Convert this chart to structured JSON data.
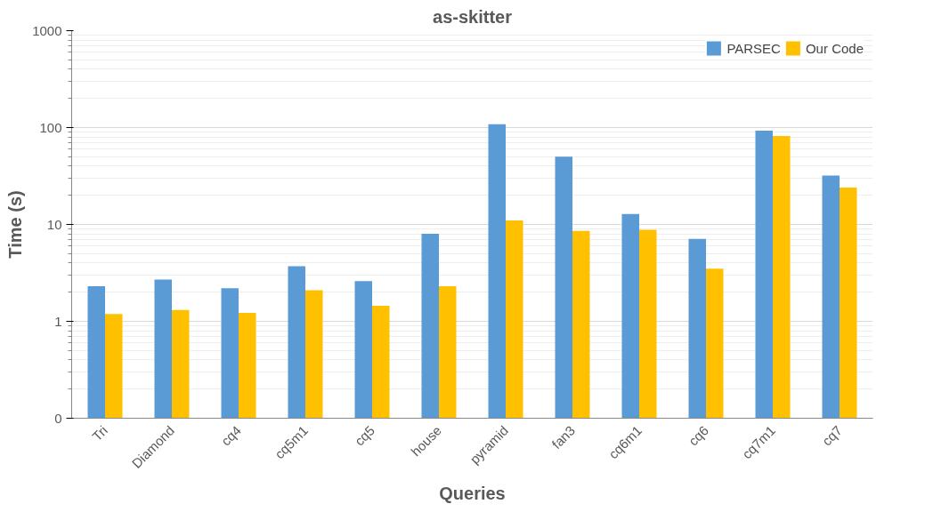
{
  "chart_data": {
    "type": "bar",
    "title": "as-skitter",
    "xlabel": "Queries",
    "ylabel": "Time (s)",
    "categories": [
      "Tri",
      "Diamond",
      "cq4",
      "cq5m1",
      "cq5",
      "house",
      "pyramid",
      "fan3",
      "cq6m1",
      "cq6",
      "cq7m1",
      "cq7"
    ],
    "series": [
      {
        "name": "PARSEC",
        "color": "#5b9bd5",
        "values": [
          2.3,
          2.7,
          2.2,
          3.7,
          2.6,
          8.0,
          108,
          50,
          12.8,
          7.1,
          93,
          32
        ]
      },
      {
        "name": "Our Code",
        "color": "#ffc000",
        "values": [
          1.19,
          1.31,
          1.22,
          2.1,
          1.45,
          2.3,
          11,
          8.6,
          8.8,
          3.5,
          82,
          24
        ]
      }
    ],
    "log": true,
    "ylim": [
      0.1,
      1000
    ],
    "yticks": [
      {
        "value": 0.1,
        "label": "0"
      },
      1,
      10,
      100,
      1000
    ],
    "grid": "y",
    "legend": "top right"
  }
}
